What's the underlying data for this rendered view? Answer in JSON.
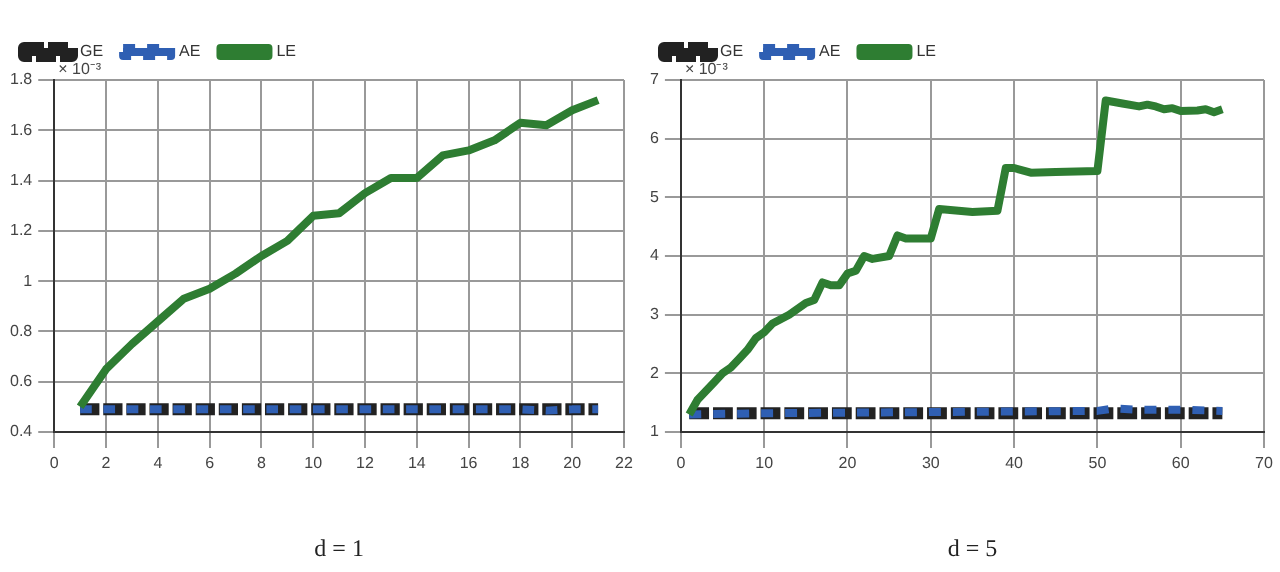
{
  "chart_data": [
    {
      "type": "line",
      "xlabel": "d = 1",
      "annotations": [
        "× 10⁻³"
      ],
      "xlim": [
        0,
        22
      ],
      "xticks": [
        0,
        2,
        4,
        6,
        8,
        10,
        12,
        14,
        16,
        18,
        20,
        22
      ],
      "ylim": [
        0.4,
        1.8
      ],
      "yticks": [
        0.4,
        0.6,
        0.8,
        1,
        1.2,
        1.4,
        1.6,
        1.8
      ],
      "grid": true,
      "legend": "top left",
      "series": [
        {
          "name": "GE",
          "color": "#222222",
          "line_style": "dashed",
          "x": [
            1,
            21
          ],
          "values": [
            0.49,
            0.49
          ]
        },
        {
          "name": "AE",
          "color": "#2f5fb3",
          "line_style": "dashed",
          "x": [
            1,
            18,
            19,
            20,
            21
          ],
          "values": [
            0.49,
            0.49,
            0.485,
            0.49,
            0.49
          ]
        },
        {
          "name": "LE",
          "color": "#2e7d32",
          "line_style": "solid",
          "x": [
            1,
            2,
            3,
            4,
            5,
            6,
            7,
            8,
            9,
            10,
            11,
            12,
            13,
            14,
            15,
            16,
            17,
            18,
            19,
            20,
            21
          ],
          "values": [
            0.5,
            0.65,
            0.75,
            0.84,
            0.93,
            0.97,
            1.03,
            1.1,
            1.16,
            1.26,
            1.27,
            1.35,
            1.41,
            1.41,
            1.5,
            1.52,
            1.56,
            1.63,
            1.62,
            1.68,
            1.72
          ]
        }
      ]
    },
    {
      "type": "line",
      "xlabel": "d = 5",
      "annotations": [
        "× 10⁻³"
      ],
      "xlim": [
        0,
        70
      ],
      "xticks": [
        0,
        10,
        20,
        30,
        40,
        50,
        60,
        70
      ],
      "ylim": [
        1,
        7
      ],
      "yticks": [
        1,
        2,
        3,
        4,
        5,
        6,
        7
      ],
      "grid": true,
      "legend": "top left",
      "series": [
        {
          "name": "GE",
          "color": "#222222",
          "line_style": "dashed",
          "x": [
            1,
            65
          ],
          "values": [
            1.32,
            1.32
          ]
        },
        {
          "name": "AE",
          "color": "#2f5fb3",
          "line_style": "dashed",
          "x": [
            1,
            10,
            20,
            30,
            40,
            50,
            52,
            55,
            60,
            65
          ],
          "values": [
            1.3,
            1.32,
            1.33,
            1.34,
            1.35,
            1.36,
            1.4,
            1.38,
            1.38,
            1.36
          ]
        },
        {
          "name": "LE",
          "color": "#2e7d32",
          "line_style": "solid",
          "x": [
            1,
            2,
            3,
            4,
            5,
            6,
            7,
            8,
            9,
            10,
            11,
            13,
            15,
            16,
            17,
            18,
            19,
            20,
            21,
            22,
            23,
            25,
            26,
            27,
            30,
            31,
            35,
            38,
            39,
            40,
            42,
            45,
            50,
            51,
            53,
            55,
            56,
            57,
            58,
            59,
            60,
            62,
            63,
            64,
            65
          ],
          "values": [
            1.3,
            1.55,
            1.7,
            1.85,
            2.0,
            2.1,
            2.25,
            2.4,
            2.6,
            2.7,
            2.85,
            3.0,
            3.2,
            3.25,
            3.55,
            3.5,
            3.5,
            3.7,
            3.75,
            4.0,
            3.95,
            4.0,
            4.35,
            4.3,
            4.3,
            4.8,
            4.75,
            4.77,
            5.5,
            5.5,
            5.42,
            5.43,
            5.45,
            6.65,
            6.6,
            6.55,
            6.58,
            6.55,
            6.5,
            6.52,
            6.47,
            6.48,
            6.5,
            6.45,
            6.5
          ]
        }
      ]
    }
  ]
}
